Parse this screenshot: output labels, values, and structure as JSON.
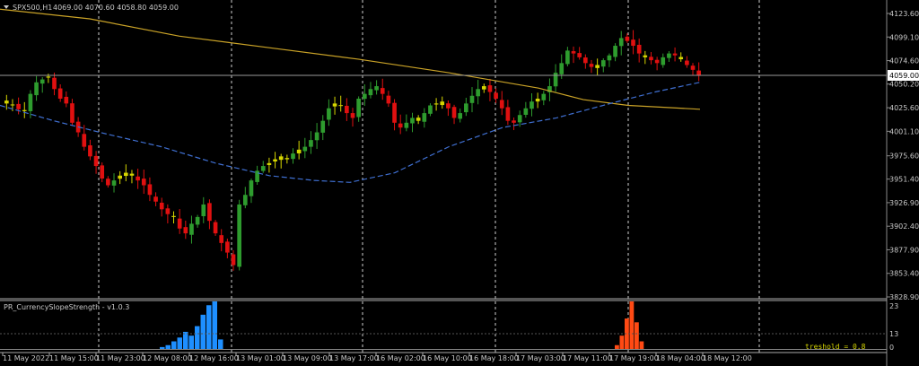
{
  "header": {
    "symbol": "SPX500,H1",
    "ohlc": "4069.00 4070.60 4058.80 4059.00",
    "dropdown_icon": "triangle-down-icon"
  },
  "indicator": {
    "title": "PR_CurrencySlopeStrength - v1.0.3",
    "threshold_label": "treshold = 0.8",
    "scale_labels": [
      "23",
      "13",
      "0"
    ]
  },
  "colors": {
    "background": "#000000",
    "bull": "#2e9c2e",
    "bear": "#e01010",
    "doji": "#d6d600",
    "slow_ma": "#c9a227",
    "fast_ma": "#3f6fd1",
    "hist_blue": "#1e8fff",
    "hist_red": "#ff4a14",
    "current_price_line": "#9a9a9a"
  },
  "chart_data": {
    "type": "candlestick",
    "y_ticks": [
      "4123.60",
      "4099.10",
      "4074.60",
      "4050.20",
      "4025.60",
      "4001.10",
      "3975.60",
      "3951.40",
      "3926.90",
      "3902.40",
      "3877.90",
      "3853.40",
      "3828.90"
    ],
    "ylim": [
      3828.9,
      4123.6
    ],
    "current_price": "4059.00",
    "x_labels": [
      "11 May 2022",
      "11 May 15:00",
      "11 May 23:00",
      "12 May 08:00",
      "12 May 16:00",
      "13 May 01:00",
      "13 May 09:00",
      "13 May 17:00",
      "16 May 02:00",
      "16 May 10:00",
      "16 May 18:00",
      "17 May 03:00",
      "17 May 11:00",
      "17 May 19:00",
      "18 May 04:00",
      "18 May 12:00"
    ],
    "close_path": [
      4030,
      4028,
      4024,
      4022,
      4040,
      4052,
      4055,
      4058,
      4045,
      4035,
      4030,
      4010,
      4000,
      3985,
      3975,
      3965,
      3952,
      3945,
      3950,
      3955,
      3958,
      3955,
      3950,
      3945,
      3935,
      3928,
      3920,
      3915,
      3912,
      3900,
      3895,
      3905,
      3912,
      3925,
      3908,
      3895,
      3885,
      3875,
      3862,
      3925,
      3935,
      3950,
      3960,
      3965,
      3968,
      3972,
      3975,
      3972,
      3978,
      3982,
      3985,
      3992,
      4000,
      4012,
      4025,
      4030,
      4028,
      4020,
      4015,
      4035,
      4040,
      4045,
      4048,
      4040,
      4030,
      4010,
      4005,
      4010,
      4015,
      4012,
      4020,
      4028,
      4030,
      4032,
      4025,
      4015,
      4020,
      4030,
      4038,
      4045,
      4048,
      4042,
      4035,
      4025,
      4012,
      4010,
      4018,
      4025,
      4032,
      4035,
      4040,
      4048,
      4062,
      4072,
      4085,
      4082,
      4078,
      4072,
      4068,
      4070,
      4075,
      4080,
      4090,
      4098,
      4095,
      4090,
      4082,
      4078,
      4075,
      4072,
      4078,
      4082,
      4080,
      4076,
      4070,
      4065,
      4059
    ],
    "slow_ma": [
      [
        0,
        4128
      ],
      [
        100,
        4118
      ],
      [
        200,
        4100
      ],
      [
        300,
        4088
      ],
      [
        400,
        4076
      ],
      [
        500,
        4062
      ],
      [
        600,
        4046
      ],
      [
        650,
        4034
      ],
      [
        700,
        4028
      ],
      [
        780,
        4024
      ]
    ],
    "fast_ma": [
      [
        0,
        4028
      ],
      [
        60,
        4012
      ],
      [
        120,
        3998
      ],
      [
        180,
        3985
      ],
      [
        240,
        3968
      ],
      [
        300,
        3955
      ],
      [
        350,
        3950
      ],
      [
        390,
        3948
      ],
      [
        440,
        3958
      ],
      [
        500,
        3985
      ],
      [
        560,
        4005
      ],
      [
        620,
        4015
      ],
      [
        680,
        4030
      ],
      [
        730,
        4042
      ],
      [
        780,
        4052
      ]
    ],
    "hist_blue": [
      1,
      2,
      4,
      6,
      9,
      7,
      12,
      18,
      23,
      25,
      5
    ],
    "hist_red": [
      2,
      7,
      16,
      25,
      14,
      4
    ],
    "hist_ylim": [
      0,
      25
    ]
  }
}
